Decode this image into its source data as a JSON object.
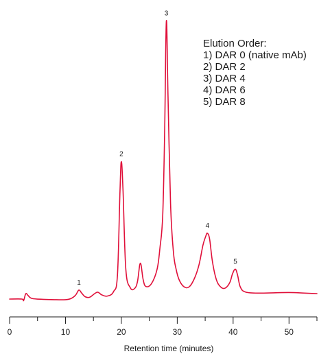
{
  "chart_data": {
    "type": "line",
    "title": "",
    "xlabel": "Retention time (minutes)",
    "ylabel": "",
    "xlim": [
      0,
      55
    ],
    "x_ticks": [
      "0",
      "10",
      "20",
      "30",
      "40",
      "50"
    ],
    "x_tick_values": [
      0,
      10,
      20,
      30,
      40,
      50
    ],
    "grid": false,
    "line_color": "#e0103a",
    "series": [
      {
        "x": [
          0,
          2.2,
          2.5,
          2.9,
          3.3,
          4.0,
          6,
          8,
          10,
          11,
          11.8,
          12.4,
          12.9,
          13.5,
          14.3,
          15.2,
          15.8,
          16.5,
          17.5,
          18.6,
          19.3,
          19.75,
          20.0,
          20.3,
          20.8,
          21.6,
          22.4,
          22.9,
          23.4,
          23.9,
          24.4,
          25.4,
          26.4,
          26.9,
          27.4,
          27.75,
          28.05,
          28.35,
          28.8,
          29.3,
          29.8,
          30.4,
          31.3,
          32.2,
          33.1,
          33.9,
          34.6,
          35.1,
          35.4,
          35.8,
          36.3,
          37.0,
          37.8,
          38.6,
          39.4,
          39.9,
          40.4,
          40.8,
          41.3,
          42.3,
          45,
          50,
          55
        ],
        "y": [
          2.0,
          2.0,
          1.5,
          3.8,
          3.2,
          2.2,
          1.9,
          1.8,
          1.8,
          2.2,
          3.3,
          5.0,
          4.0,
          2.8,
          2.6,
          3.8,
          4.3,
          3.4,
          3.0,
          4.5,
          10,
          38,
          48,
          38,
          12,
          5.8,
          5.6,
          8.0,
          14.0,
          8.5,
          6.2,
          7.2,
          12,
          19,
          30,
          58,
          95,
          70,
          34,
          18,
          12,
          8.2,
          6.0,
          6.2,
          9.0,
          13.5,
          20.0,
          23.0,
          24.0,
          22.0,
          14.5,
          8.5,
          6.0,
          5.7,
          7.5,
          10.5,
          12.0,
          10.0,
          6.0,
          4.3,
          4.0,
          4.2,
          3.8
        ]
      }
    ],
    "ylim": [
      0,
      100
    ],
    "annotations": [
      {
        "label": "1",
        "x": 12.4
      },
      {
        "label": "2",
        "x": 20.0
      },
      {
        "label": "3",
        "x": 28.05
      },
      {
        "label": "4",
        "x": 35.4
      },
      {
        "label": "5",
        "x": 40.4
      }
    ],
    "legend": {
      "title": "Elution Order:",
      "items": [
        "1)  DAR 0 (native mAb)",
        "2)  DAR 2",
        "3)  DAR 4",
        "4)  DAR 6",
        "5)  DAR 8"
      ],
      "placement": "top-right"
    }
  }
}
